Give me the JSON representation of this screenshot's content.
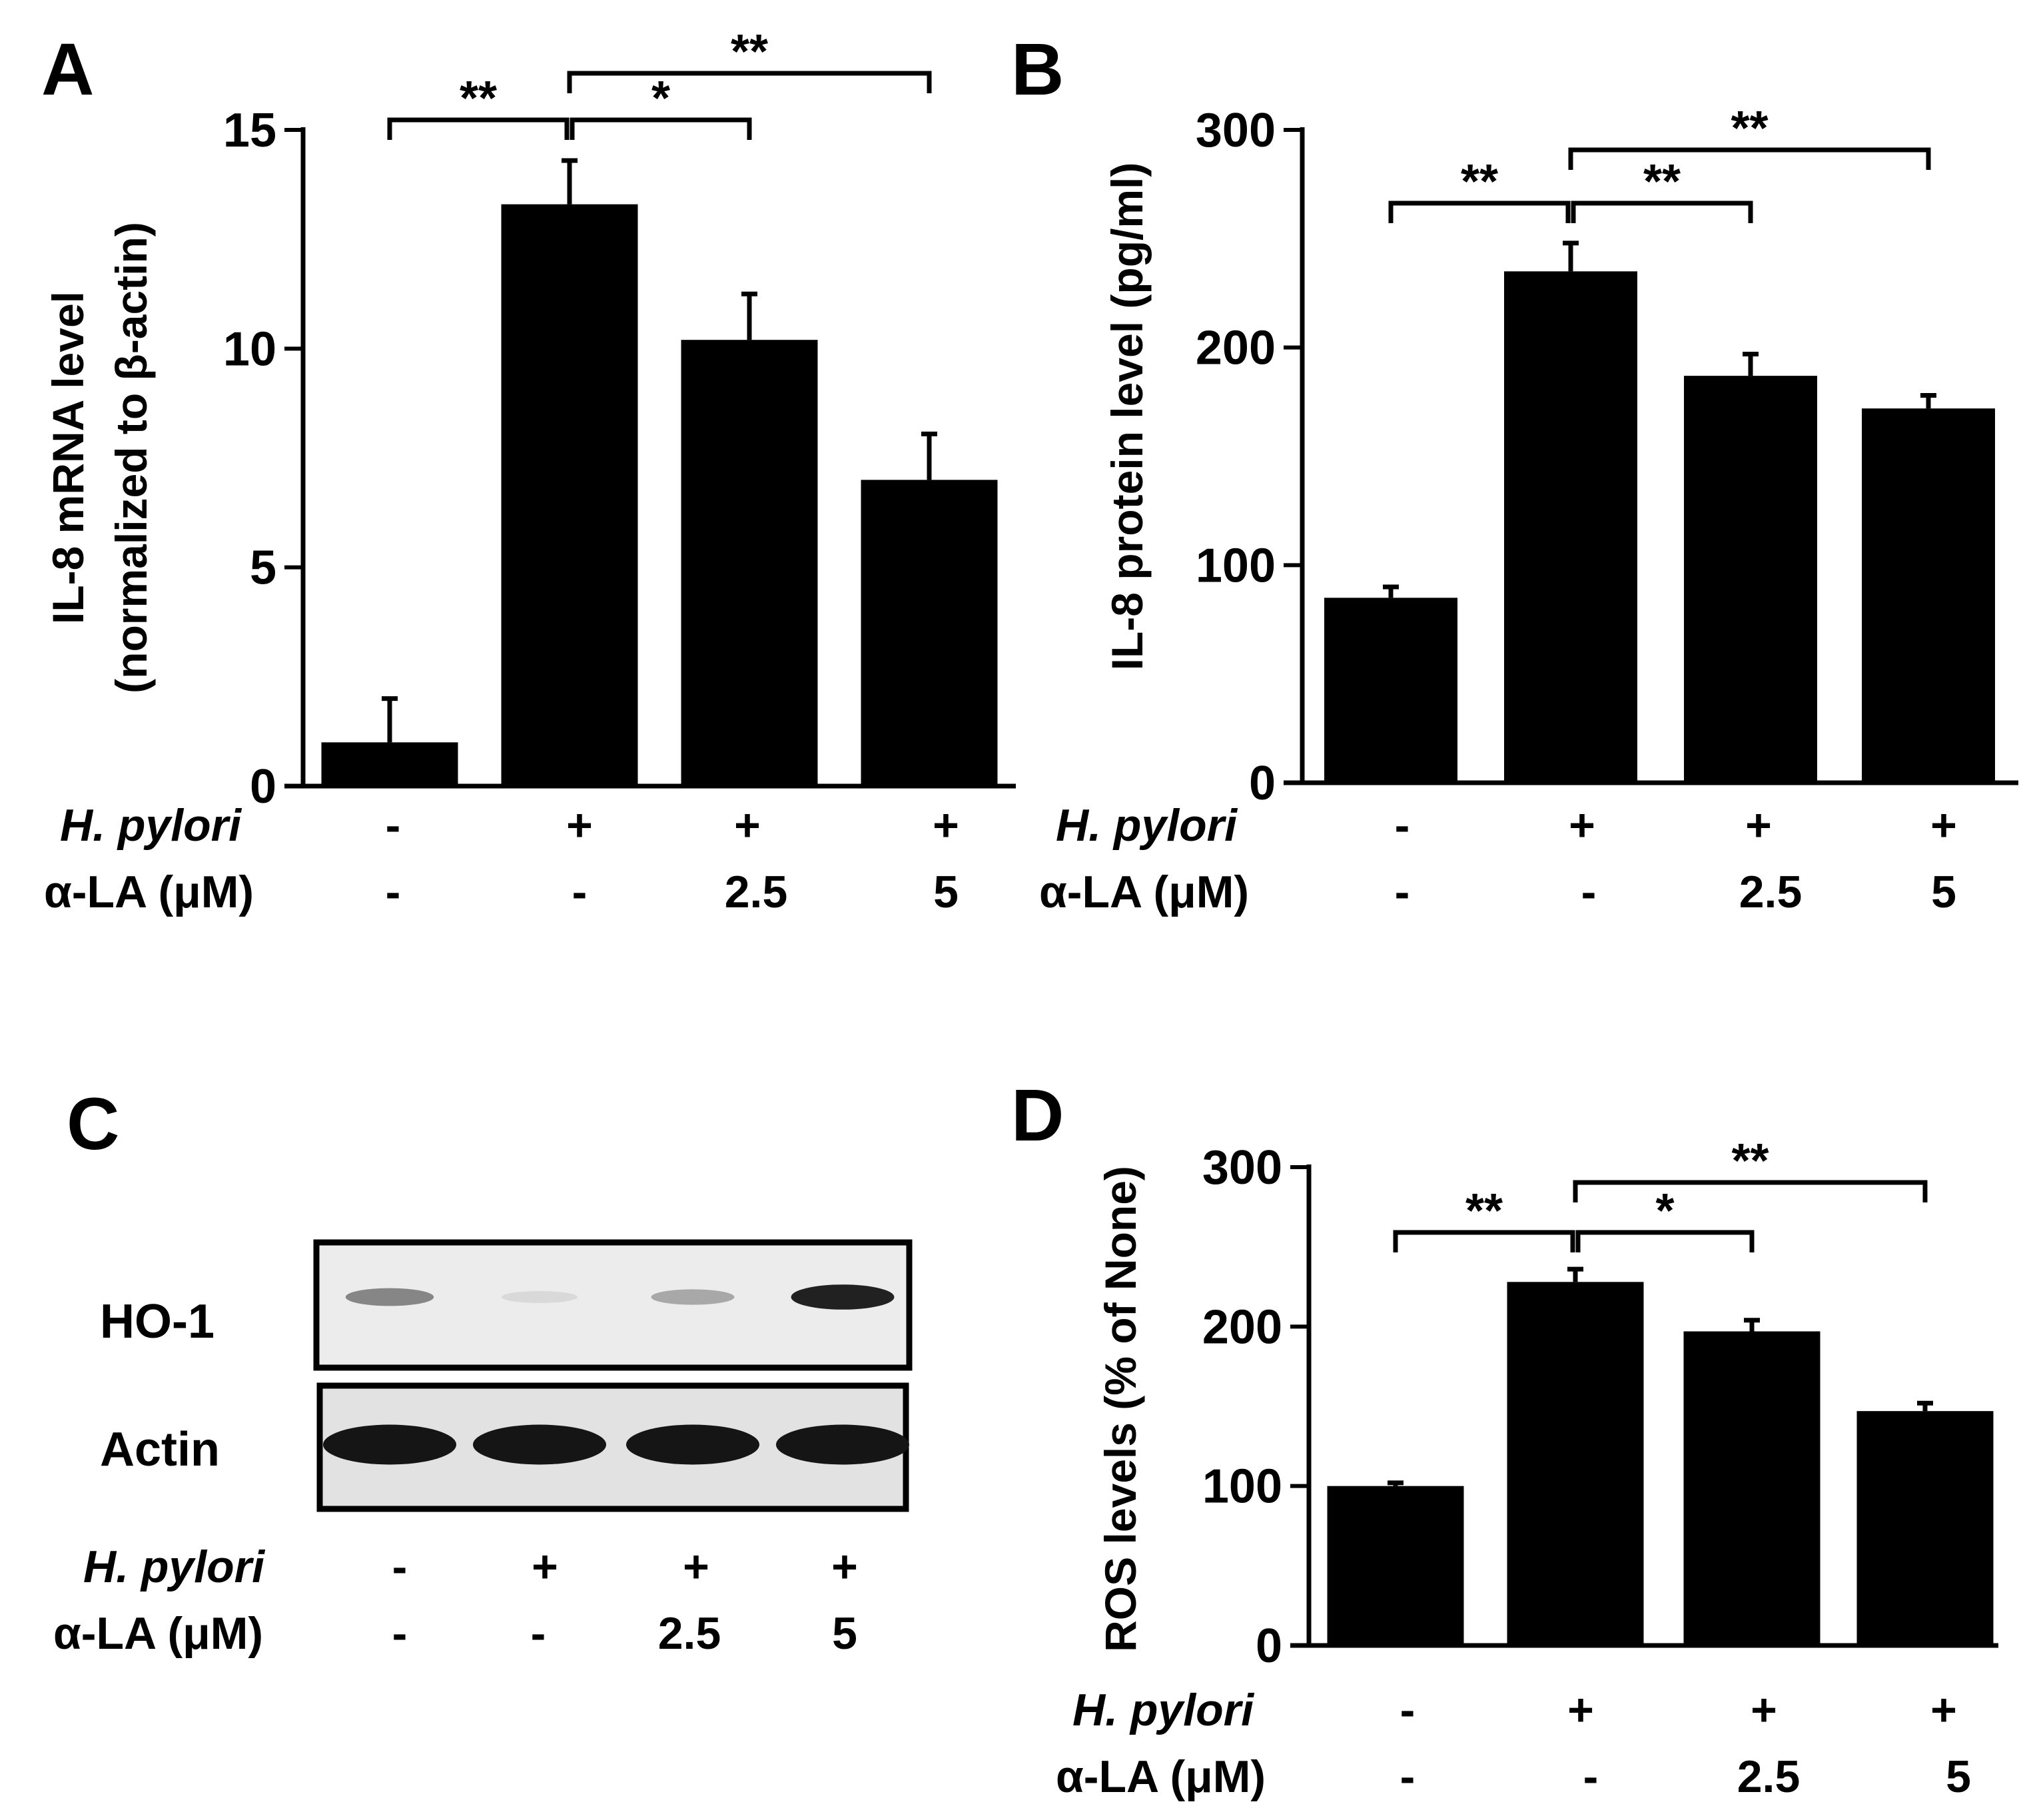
{
  "panels": {
    "A": {
      "letter": "A"
    },
    "B": {
      "letter": "B"
    },
    "C": {
      "letter": "C"
    },
    "D": {
      "letter": "D"
    }
  },
  "treatments": {
    "row1_label": "H. pylori",
    "row2_label": "α-LA (μM)",
    "hp": [
      "-",
      "+",
      "+",
      "+"
    ],
    "la": [
      "-",
      "-",
      "2.5",
      "5"
    ]
  },
  "blot": {
    "rows": [
      {
        "label": "HO-1",
        "band_intensity": [
          0.45,
          0.08,
          0.3,
          0.9
        ]
      },
      {
        "label": "Actin",
        "band_intensity": [
          0.95,
          0.95,
          0.95,
          0.95
        ]
      }
    ]
  },
  "chart_data": [
    {
      "panel": "A",
      "type": "bar",
      "categories": [
        "1",
        "2",
        "3",
        "4"
      ],
      "values": [
        1.0,
        13.3,
        10.2,
        7.0
      ],
      "errors": [
        1.0,
        1.0,
        1.05,
        1.05
      ],
      "ylabel_line1": "IL-8 mRNA level",
      "ylabel_line2": "(normalized to β-actin)",
      "ylim": [
        0,
        15
      ],
      "yticks": [
        0,
        5,
        10,
        15
      ],
      "significance": [
        {
          "from": 0,
          "to": 1,
          "label": "**",
          "tier": 0
        },
        {
          "from": 1,
          "to": 2,
          "label": "*",
          "tier": 0
        },
        {
          "from": 1,
          "to": 3,
          "label": "**",
          "tier": 1
        }
      ]
    },
    {
      "panel": "B",
      "type": "bar",
      "categories": [
        "1",
        "2",
        "3",
        "4"
      ],
      "values": [
        85,
        235,
        187,
        172
      ],
      "errors": [
        5,
        13,
        10,
        6
      ],
      "ylabel_line1": "IL-8 protein  level (pg/ml)",
      "ylabel_line2": "",
      "ylim": [
        0,
        300
      ],
      "yticks": [
        0,
        100,
        200,
        300
      ],
      "significance": [
        {
          "from": 0,
          "to": 1,
          "label": "**",
          "tier": 0
        },
        {
          "from": 1,
          "to": 2,
          "label": "**",
          "tier": 0
        },
        {
          "from": 1,
          "to": 3,
          "label": "**",
          "tier": 1
        }
      ]
    },
    {
      "panel": "D",
      "type": "bar",
      "categories": [
        "1",
        "2",
        "3",
        "4"
      ],
      "values": [
        100,
        228,
        197,
        147
      ],
      "errors": [
        2,
        8,
        7,
        5
      ],
      "ylabel_line1": "ROS levels (% of None)",
      "ylabel_line2": "",
      "ylim": [
        0,
        300
      ],
      "yticks": [
        0,
        100,
        200,
        300
      ],
      "significance": [
        {
          "from": 0,
          "to": 1,
          "label": "**",
          "tier": 0
        },
        {
          "from": 1,
          "to": 2,
          "label": "*",
          "tier": 0
        },
        {
          "from": 1,
          "to": 3,
          "label": "**",
          "tier": 1
        }
      ]
    }
  ]
}
